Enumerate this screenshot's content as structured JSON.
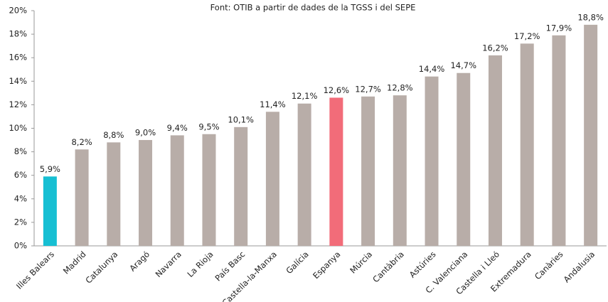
{
  "chart_data": {
    "type": "bar",
    "title": "Font: OTIB a partir de dades de la TGSS i del SEPE",
    "categories": [
      "Illes Balears",
      "Madrid",
      "Catalunya",
      "Aragó",
      "Navarra",
      "La Rioja",
      "País Basc",
      "Castella-la-Manxa",
      "Galícia",
      "Espanya",
      "Múrcia",
      "Cantàbria",
      "Astúries",
      "C. Valenciana",
      "Castella i Lleó",
      "Extremadura",
      "Canàries",
      "Andalusia"
    ],
    "values": [
      5.9,
      8.2,
      8.8,
      9.0,
      9.4,
      9.5,
      10.1,
      11.4,
      12.1,
      12.6,
      12.7,
      12.8,
      14.4,
      14.7,
      16.2,
      17.2,
      17.9,
      18.8
    ],
    "value_labels": [
      "5,9%",
      "8,2%",
      "8,8%",
      "9,0%",
      "9,4%",
      "9,5%",
      "10,1%",
      "11,4%",
      "12,1%",
      "12,6%",
      "12,7%",
      "12,8%",
      "14,4%",
      "14,7%",
      "16,2%",
      "17,2%",
      "17,9%",
      "18,8%"
    ],
    "colors": [
      "#17bfd3",
      "#b8ada8",
      "#b8ada8",
      "#b8ada8",
      "#b8ada8",
      "#b8ada8",
      "#b8ada8",
      "#b8ada8",
      "#b8ada8",
      "#f26c79",
      "#b8ada8",
      "#b8ada8",
      "#b8ada8",
      "#b8ada8",
      "#b8ada8",
      "#b8ada8",
      "#b8ada8",
      "#b8ada8"
    ],
    "ylim": [
      0,
      20
    ],
    "yticks": [
      {
        "value": 0,
        "label": "0%"
      },
      {
        "value": 2,
        "label": "2%"
      },
      {
        "value": 4,
        "label": "4%"
      },
      {
        "value": 6,
        "label": "6%"
      },
      {
        "value": 8,
        "label": "8%"
      },
      {
        "value": 10,
        "label": "10%"
      },
      {
        "value": 12,
        "label": "12%"
      },
      {
        "value": 14,
        "label": "14%"
      },
      {
        "value": 16,
        "label": "16%"
      },
      {
        "value": 18,
        "label": "18%"
      },
      {
        "value": 20,
        "label": "20%"
      }
    ],
    "grid": false
  }
}
